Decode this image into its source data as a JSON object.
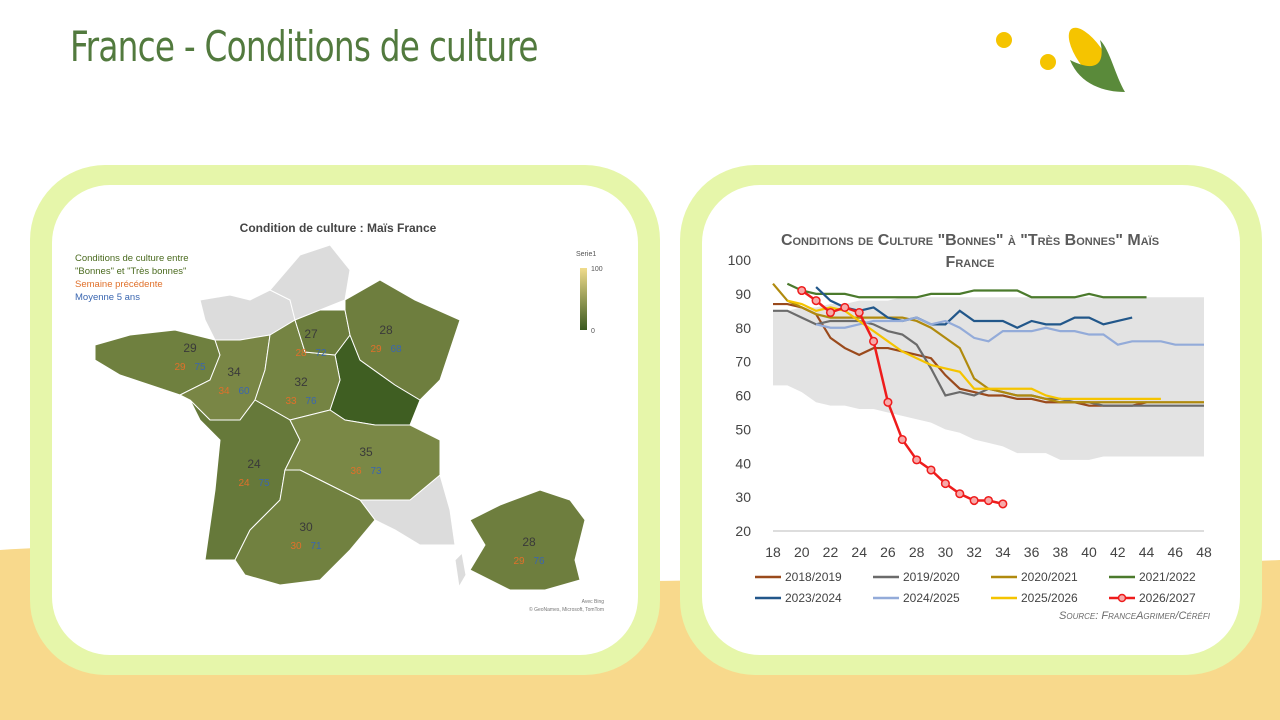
{
  "title": "France - Conditions de culture",
  "map": {
    "title": "Condition de culture : Maïs France",
    "legend": [
      "Conditions de culture entre \"Bonnes\" et \"Très bonnes\"",
      "Semaine précédente",
      "Moyenne 5 ans"
    ],
    "legend_colors": [
      "#4a6a1e",
      "#e0702a",
      "#3a66b0"
    ],
    "colorbar_title": "Serie1",
    "colorbar_ticks": [
      0,
      100
    ],
    "colorbar_colors": [
      "#3b5a20",
      "#f0dc8c"
    ],
    "regions": [
      {
        "value": 29,
        "previous": 29,
        "average": 75
      },
      {
        "value": 34,
        "previous": 34,
        "average": 60
      },
      {
        "value": 32,
        "previous": 33,
        "average": 76
      },
      {
        "value": 27,
        "previous": 28,
        "average": 72
      },
      {
        "value": 28,
        "previous": 29,
        "average": 68
      },
      {
        "value": 24,
        "previous": 24,
        "average": 75
      },
      {
        "value": 35,
        "previous": 36,
        "average": 73
      },
      {
        "value": 30,
        "previous": 30,
        "average": 71
      },
      {
        "value": 28,
        "previous": 29,
        "average": 76
      }
    ],
    "credit": "© GeoNames, Microsoft, TomTom",
    "attribution": "Avec Bing"
  },
  "chart_data": {
    "type": "line",
    "title": "Conditions de Culture \"Bonnes\" à \"Très Bonnes\" Maïs France",
    "source": "Source: FranceAgrimer/Céréfi",
    "xlim": [
      18,
      48
    ],
    "xticks": [
      18,
      20,
      22,
      24,
      26,
      28,
      30,
      32,
      34,
      36,
      38,
      40,
      42,
      44,
      46,
      48
    ],
    "ylim": [
      20,
      100
    ],
    "yticks": [
      20,
      30,
      40,
      50,
      60,
      70,
      80,
      90,
      100
    ],
    "grid": false,
    "band": {
      "color": "#e3e3e3",
      "x": [
        18,
        19,
        20,
        21,
        22,
        23,
        24,
        25,
        26,
        27,
        28,
        29,
        30,
        31,
        32,
        33,
        34,
        35,
        36,
        37,
        38,
        39,
        40,
        41,
        42,
        43,
        44,
        45,
        46,
        47,
        48
      ],
      "upper": [
        85,
        85,
        86,
        86,
        87,
        87,
        88,
        88,
        88,
        89,
        89,
        89,
        89,
        89,
        89,
        89,
        89,
        89,
        89,
        89,
        89,
        89,
        89,
        89,
        89,
        89,
        89,
        89,
        89,
        89,
        89
      ],
      "lower": [
        63,
        63,
        61,
        58,
        57,
        57,
        56,
        56,
        55,
        54,
        53,
        52,
        50,
        49,
        47,
        46,
        45,
        43,
        43,
        43,
        41,
        41,
        41,
        42,
        42,
        42,
        42,
        42,
        42,
        42,
        42
      ]
    },
    "series": [
      {
        "name": "2018/2019",
        "color": "#9a4a1c",
        "markers": false,
        "x": [
          18,
          19,
          20,
          21,
          22,
          23,
          24,
          25,
          26,
          27,
          28,
          29,
          30,
          31,
          32,
          33,
          34,
          35,
          36,
          37,
          38,
          39,
          40,
          41,
          42,
          43,
          44
        ],
        "values": [
          87,
          87,
          86,
          84,
          77,
          74,
          72,
          74,
          74,
          73,
          72,
          71,
          66,
          62,
          61,
          60,
          60,
          59,
          59,
          58,
          58,
          58,
          57,
          57,
          57,
          57,
          58
        ]
      },
      {
        "name": "2019/2020",
        "color": "#6b6b6b",
        "markers": false,
        "x": [
          18,
          19,
          20,
          21,
          22,
          23,
          24,
          25,
          26,
          27,
          28,
          29,
          30,
          31,
          32,
          33,
          34,
          35,
          36,
          37,
          38,
          39,
          40,
          41,
          42,
          43,
          44,
          45,
          46,
          47,
          48
        ],
        "values": [
          85,
          85,
          83,
          81,
          82,
          82,
          82,
          81,
          79,
          78,
          75,
          68,
          60,
          61,
          60,
          62,
          61,
          60,
          60,
          59,
          59,
          58,
          58,
          57,
          57,
          57,
          57,
          57,
          57,
          57,
          57
        ]
      },
      {
        "name": "2020/2021",
        "color": "#b08a0e",
        "markers": false,
        "x": [
          18,
          19,
          20,
          21,
          22,
          23,
          24,
          25,
          26,
          27,
          28,
          29,
          30,
          31,
          32,
          33,
          34,
          35,
          36,
          37,
          38,
          39,
          40,
          41,
          42,
          43,
          44,
          45,
          46,
          47,
          48
        ],
        "values": [
          93,
          88,
          86,
          84,
          83,
          83,
          83,
          83,
          83,
          83,
          82,
          80,
          77,
          74,
          65,
          62,
          61,
          60,
          60,
          59,
          58,
          58,
          58,
          58,
          58,
          58,
          58,
          58,
          58,
          58,
          58
        ]
      },
      {
        "name": "2021/2022",
        "color": "#4b7a2c",
        "markers": false,
        "x": [
          19,
          20,
          21,
          22,
          23,
          24,
          25,
          26,
          27,
          28,
          29,
          30,
          31,
          32,
          33,
          34,
          35,
          36,
          37,
          38,
          39,
          40,
          41,
          42,
          43,
          44
        ],
        "values": [
          93,
          91,
          90,
          90,
          90,
          89,
          89,
          89,
          89,
          89,
          90,
          90,
          90,
          91,
          91,
          91,
          91,
          89,
          89,
          89,
          89,
          90,
          89,
          89,
          89,
          89
        ]
      },
      {
        "name": "2023/2024",
        "color": "#22578a",
        "markers": false,
        "x": [
          21,
          22,
          23,
          24,
          25,
          26,
          27,
          28,
          29,
          30,
          31,
          32,
          33,
          34,
          35,
          36,
          37,
          38,
          39,
          40,
          41,
          42,
          43
        ],
        "values": [
          92,
          88,
          86,
          85,
          86,
          83,
          82,
          83,
          81,
          81,
          85,
          82,
          82,
          82,
          80,
          82,
          81,
          81,
          83,
          83,
          81,
          82,
          83
        ]
      },
      {
        "name": "2024/2025",
        "color": "#93abd9",
        "markers": false,
        "x": [
          21,
          22,
          23,
          24,
          25,
          26,
          27,
          28,
          29,
          30,
          31,
          32,
          33,
          34,
          35,
          36,
          37,
          38,
          39,
          40,
          41,
          42,
          43,
          44,
          45,
          46,
          47,
          48
        ],
        "values": [
          81,
          80,
          80,
          81,
          82,
          82,
          82,
          83,
          81,
          82,
          80,
          77,
          76,
          79,
          79,
          79,
          80,
          79,
          79,
          78,
          78,
          75,
          76,
          76,
          76,
          75,
          75,
          75
        ]
      },
      {
        "name": "2025/2026",
        "color": "#f5c400",
        "markers": false,
        "x": [
          19,
          20,
          21,
          22,
          23,
          24,
          25,
          26,
          27,
          28,
          29,
          30,
          31,
          32,
          33,
          34,
          35,
          36,
          37,
          38,
          39,
          40,
          41,
          42,
          43,
          44,
          45
        ],
        "values": [
          88,
          87,
          85,
          86,
          85,
          82,
          79,
          76,
          73,
          71,
          69,
          68,
          67,
          62,
          62,
          62,
          62,
          62,
          60,
          59,
          59,
          59,
          59,
          59,
          59,
          59,
          59
        ]
      },
      {
        "name": "2026/2027",
        "color": "#ee1c1c",
        "markers": true,
        "x": [
          20,
          21,
          22,
          23,
          24,
          25,
          26,
          27,
          28,
          29,
          30,
          31,
          32,
          33,
          34
        ],
        "values": [
          91,
          88,
          84.5,
          86,
          84.5,
          76,
          58,
          47,
          41,
          38,
          34,
          31,
          29,
          29,
          28
        ]
      }
    ]
  }
}
